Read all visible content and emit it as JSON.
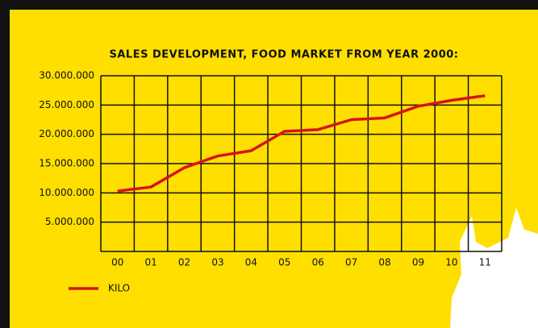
{
  "chart_data": {
    "type": "line",
    "title": "SALES DEVELOPMENT, FOOD MARKET FROM YEAR 2000:",
    "categories": [
      "00",
      "01",
      "02",
      "03",
      "04",
      "05",
      "06",
      "07",
      "08",
      "09",
      "10",
      "11"
    ],
    "series": [
      {
        "name": "KILO",
        "color": "#d7141a",
        "values": [
          10300000,
          11000000,
          14300000,
          16300000,
          17200000,
          20500000,
          20800000,
          22500000,
          22800000,
          24800000,
          25800000,
          26600000
        ]
      }
    ],
    "ylim": [
      0,
      30000000
    ],
    "yticks": [
      {
        "value": 5000000,
        "label": "5.000.000"
      },
      {
        "value": 10000000,
        "label": "10.000.000"
      },
      {
        "value": 15000000,
        "label": "15.000.000"
      },
      {
        "value": 20000000,
        "label": "20.000.000"
      },
      {
        "value": 25000000,
        "label": "25.000.000"
      },
      {
        "value": 30000000,
        "label": "30.000.000"
      }
    ],
    "grid": true
  }
}
